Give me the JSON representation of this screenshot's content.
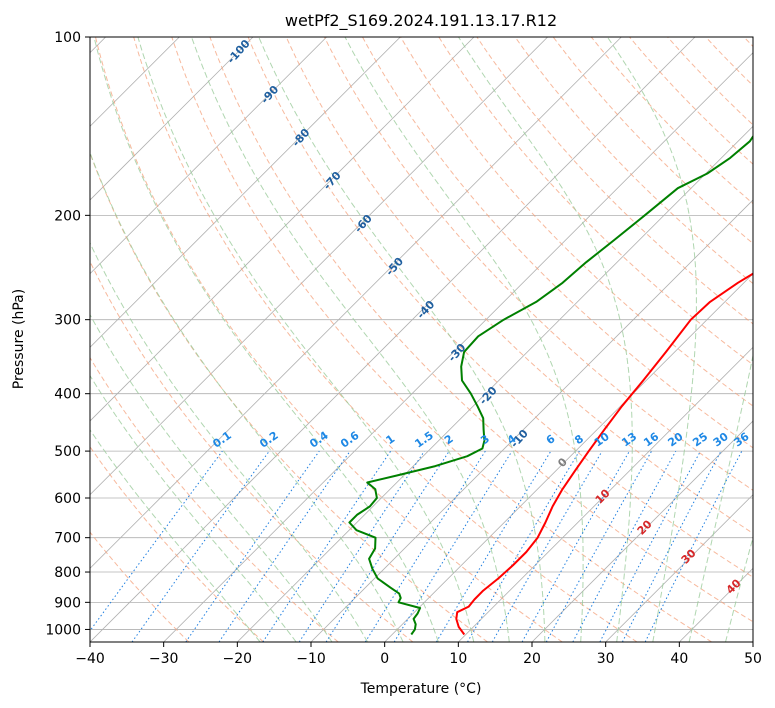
{
  "chart_data": {
    "type": "line",
    "title": "wetPf2_S169.2024.191.13.17.R12",
    "xlabel": "Temperature (°C)",
    "ylabel": "Pressure (hPa)",
    "xlim": [
      -40,
      50
    ],
    "ylim": [
      1050,
      100
    ],
    "y_scale": "log",
    "grid": true,
    "x_ticks": [
      -40,
      -30,
      -20,
      -10,
      0,
      10,
      20,
      30,
      40,
      50
    ],
    "y_ticks": [
      100,
      200,
      300,
      400,
      500,
      600,
      700,
      800,
      900,
      1000
    ],
    "series": [
      {
        "color": "#ff0000",
        "points": [
          {
            "p": 1020,
            "t": 9.8
          },
          {
            "p": 990,
            "t": 8.0
          },
          {
            "p": 960,
            "t": 6.6
          },
          {
            "p": 935,
            "t": 5.8
          },
          {
            "p": 915,
            "t": 6.6
          },
          {
            "p": 890,
            "t": 6.4
          },
          {
            "p": 860,
            "t": 6.4
          },
          {
            "p": 820,
            "t": 6.8
          },
          {
            "p": 780,
            "t": 7.0
          },
          {
            "p": 740,
            "t": 7.0
          },
          {
            "p": 700,
            "t": 6.6
          },
          {
            "p": 660,
            "t": 5.6
          },
          {
            "p": 620,
            "t": 4.4
          },
          {
            "p": 580,
            "t": 3.4
          },
          {
            "p": 540,
            "t": 2.6
          },
          {
            "p": 500,
            "t": 1.8
          },
          {
            "p": 460,
            "t": 1.0
          },
          {
            "p": 420,
            "t": 0.2
          },
          {
            "p": 380,
            "t": -0.4
          },
          {
            "p": 340,
            "t": -1.2
          },
          {
            "p": 300,
            "t": -2.2
          },
          {
            "p": 280,
            "t": -2.0
          },
          {
            "p": 260,
            "t": -0.8
          },
          {
            "p": 240,
            "t": 1.0
          },
          {
            "p": 220,
            "t": 3.0
          },
          {
            "p": 200,
            "t": 5.0
          },
          {
            "p": 180,
            "t": 7.2
          },
          {
            "p": 160,
            "t": 9.6
          },
          {
            "p": 140,
            "t": 12.4
          },
          {
            "p": 120,
            "t": 15.6
          },
          {
            "p": 110,
            "t": 17.6
          },
          {
            "p": 100,
            "t": 19.6
          }
        ]
      },
      {
        "color": "#008000",
        "points": [
          {
            "p": 1020,
            "t": 2.6
          },
          {
            "p": 1000,
            "t": 2.4
          },
          {
            "p": 980,
            "t": 1.8
          },
          {
            "p": 960,
            "t": 0.8
          },
          {
            "p": 940,
            "t": 0.6
          },
          {
            "p": 920,
            "t": 0.2
          },
          {
            "p": 900,
            "t": -3.5
          },
          {
            "p": 885,
            "t": -3.8
          },
          {
            "p": 870,
            "t": -4.6
          },
          {
            "p": 850,
            "t": -6.6
          },
          {
            "p": 820,
            "t": -9.6
          },
          {
            "p": 790,
            "t": -11.6
          },
          {
            "p": 760,
            "t": -13.4
          },
          {
            "p": 730,
            "t": -14.0
          },
          {
            "p": 700,
            "t": -15.4
          },
          {
            "p": 680,
            "t": -19.0
          },
          {
            "p": 660,
            "t": -21.0
          },
          {
            "p": 640,
            "t": -21.0
          },
          {
            "p": 620,
            "t": -20.4
          },
          {
            "p": 600,
            "t": -20.6
          },
          {
            "p": 580,
            "t": -22.0
          },
          {
            "p": 565,
            "t": -24.0
          },
          {
            "p": 550,
            "t": -21.0
          },
          {
            "p": 530,
            "t": -17.0
          },
          {
            "p": 510,
            "t": -14.0
          },
          {
            "p": 495,
            "t": -13.0
          },
          {
            "p": 480,
            "t": -13.8
          },
          {
            "p": 460,
            "t": -15.4
          },
          {
            "p": 440,
            "t": -17.0
          },
          {
            "p": 420,
            "t": -19.4
          },
          {
            "p": 400,
            "t": -22.0
          },
          {
            "p": 380,
            "t": -25.0
          },
          {
            "p": 360,
            "t": -27.0
          },
          {
            "p": 340,
            "t": -28.6
          },
          {
            "p": 320,
            "t": -28.8
          },
          {
            "p": 300,
            "t": -27.6
          },
          {
            "p": 280,
            "t": -25.6
          },
          {
            "p": 260,
            "t": -24.6
          },
          {
            "p": 240,
            "t": -24.2
          },
          {
            "p": 220,
            "t": -23.4
          },
          {
            "p": 200,
            "t": -22.6
          },
          {
            "p": 180,
            "t": -21.8
          },
          {
            "p": 170,
            "t": -19.8
          },
          {
            "p": 160,
            "t": -18.8
          },
          {
            "p": 150,
            "t": -18.4
          },
          {
            "p": 140,
            "t": -19.2
          },
          {
            "p": 130,
            "t": -17.4
          },
          {
            "p": 120,
            "t": -14.8
          },
          {
            "p": 110,
            "t": -11.4
          },
          {
            "p": 100,
            "t": -8.6
          }
        ]
      }
    ],
    "dry_adiabat_labels": [
      "-100",
      "-90",
      "-80",
      "-70",
      "-60",
      "-50",
      "-40",
      "-30",
      "-20",
      "-10"
    ],
    "mixing_ratio_labels": [
      "0.1",
      "0.2",
      "0.4",
      "0.6",
      "1",
      "1.5",
      "2",
      "3",
      "4",
      "6",
      "8",
      "10",
      "13",
      "16",
      "20",
      "25",
      "30",
      "36"
    ],
    "moist_adiabat_labels": [
      "0",
      "10",
      "20",
      "30",
      "40"
    ],
    "colors": {
      "temperature": "#ff0000",
      "dewpoint": "#008000",
      "isotherm": "#b0b0b0",
      "isobar": "#b0b0b0",
      "dry_adiabat": "#f4a27c",
      "moist_adiabat": "#9ccc9c",
      "mixing_ratio": "#1f7fe0",
      "dry_adiabat_label": "#1f5f9f",
      "mixing_ratio_label": "#1e88e5",
      "moist_adiabat_label": "#d62728",
      "freezing_label": "#7f7f7f"
    }
  }
}
